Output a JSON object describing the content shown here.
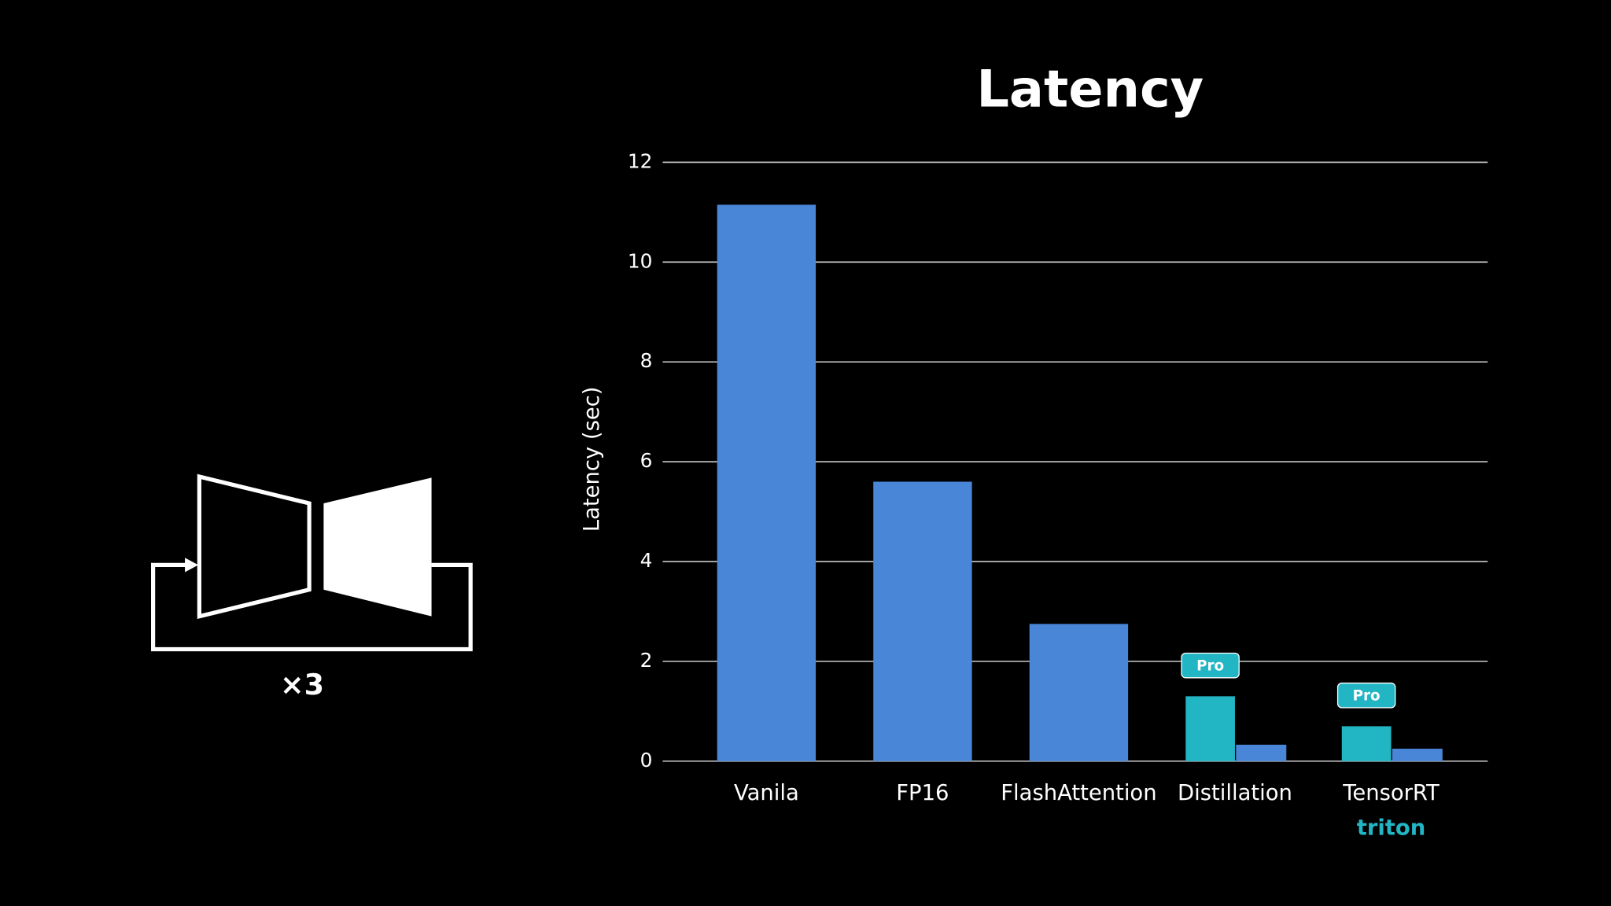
{
  "diagram": {
    "label": "×3"
  },
  "chart_data": {
    "type": "bar",
    "title": "Latency",
    "ylabel": "Latency (sec)",
    "categories": [
      "Vanila",
      "FP16",
      "FlashAttention",
      "Distillation",
      "TensorRT"
    ],
    "category_sublabels": [
      null,
      null,
      null,
      null,
      "triton"
    ],
    "series": [
      {
        "color": "#4a86d8",
        "values": [
          11.15,
          5.6,
          2.75,
          0.33,
          0.25
        ]
      },
      {
        "color": "#22b5c4",
        "values": [
          null,
          null,
          null,
          1.3,
          0.7
        ],
        "badges": [
          null,
          null,
          null,
          "Pro",
          "Pro"
        ]
      }
    ],
    "ylim": [
      0,
      12
    ],
    "yticks": [
      0,
      2,
      4,
      6,
      8,
      10,
      12
    ],
    "grid": true
  }
}
